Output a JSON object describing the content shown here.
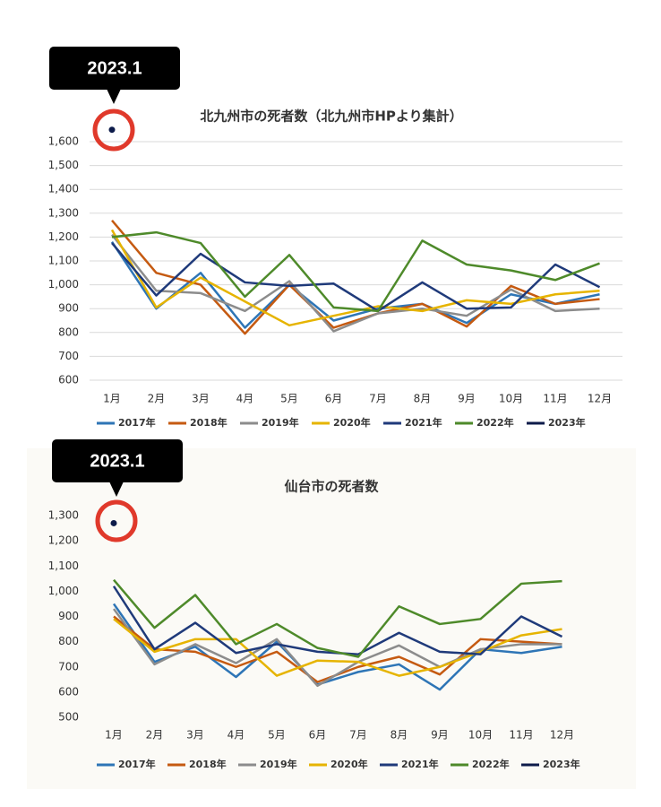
{
  "chart_data": [
    {
      "type": "line",
      "title": "北九州市の死者数（北九州市HPより集計）",
      "annotation": "2023.1",
      "categories": [
        "1月",
        "2月",
        "3月",
        "4月",
        "5月",
        "6月",
        "7月",
        "8月",
        "9月",
        "10月",
        "11月",
        "12月"
      ],
      "ylim": [
        600,
        1600
      ],
      "yticks": [
        600,
        700,
        800,
        900,
        {
          "value": 1000,
          "label": "1,000"
        },
        {
          "value": 1100,
          "label": "1,100"
        },
        {
          "value": 1200,
          "label": "1,200"
        },
        {
          "value": 1300,
          "label": "1,300"
        },
        {
          "value": 1400,
          "label": "1,400"
        },
        {
          "value": 1500,
          "label": "1,500"
        },
        {
          "value": 1600,
          "label": "1,600"
        }
      ],
      "grid": true,
      "series": [
        {
          "name": "2017年",
          "color": "#2e75b6",
          "values": [
            1180,
            900,
            1050,
            820,
            1000,
            850,
            900,
            920,
            840,
            960,
            920,
            960
          ]
        },
        {
          "name": "2018年",
          "color": "#c55a11",
          "values": [
            1270,
            1050,
            1000,
            795,
            1000,
            820,
            880,
            920,
            825,
            995,
            920,
            940
          ]
        },
        {
          "name": "2019年",
          "color": "#8c8c8c",
          "values": [
            1210,
            975,
            965,
            890,
            1015,
            805,
            880,
            900,
            870,
            980,
            890,
            900
          ]
        },
        {
          "name": "2020年",
          "color": "#e6b400",
          "values": [
            1230,
            905,
            1030,
            930,
            830,
            870,
            910,
            890,
            935,
            920,
            960,
            975
          ]
        },
        {
          "name": "2021年",
          "color": "#1f3a7a",
          "values": [
            1175,
            955,
            1130,
            1010,
            995,
            1005,
            890,
            1010,
            900,
            905,
            1085,
            990
          ]
        },
        {
          "name": "2022年",
          "color": "#4e8a2a",
          "values": [
            1200,
            1220,
            1175,
            950,
            1125,
            905,
            890,
            1185,
            1085,
            1060,
            1020,
            1090
          ]
        },
        {
          "name": "2023年",
          "color": "#0d1b4a",
          "values": [
            1650,
            null,
            null,
            null,
            null,
            null,
            null,
            null,
            null,
            null,
            null,
            null
          ]
        }
      ]
    },
    {
      "type": "line",
      "title": "仙台市の死者数",
      "annotation": "2023.1",
      "categories": [
        "1月",
        "2月",
        "3月",
        "4月",
        "5月",
        "6月",
        "7月",
        "8月",
        "9月",
        "10月",
        "11月",
        "12月"
      ],
      "ylim": [
        500,
        1300
      ],
      "yticks": [
        500,
        600,
        700,
        800,
        900,
        {
          "value": 1000,
          "label": "1,000"
        },
        {
          "value": 1100,
          "label": "1,100"
        },
        {
          "value": 1200,
          "label": "1,200"
        },
        {
          "value": 1300,
          "label": "1,300"
        }
      ],
      "grid": false,
      "series": [
        {
          "name": "2017年",
          "color": "#2e75b6",
          "values": [
            950,
            720,
            780,
            660,
            800,
            630,
            680,
            710,
            610,
            770,
            755,
            780
          ]
        },
        {
          "name": "2018年",
          "color": "#c55a11",
          "values": [
            900,
            770,
            760,
            700,
            760,
            640,
            700,
            740,
            670,
            810,
            800,
            790
          ]
        },
        {
          "name": "2019年",
          "color": "#8c8c8c",
          "values": [
            930,
            710,
            790,
            715,
            810,
            625,
            720,
            785,
            700,
            770,
            790,
            790
          ]
        },
        {
          "name": "2020年",
          "color": "#e6b400",
          "values": [
            890,
            760,
            810,
            810,
            665,
            725,
            720,
            665,
            700,
            760,
            825,
            850
          ]
        },
        {
          "name": "2021年",
          "color": "#1f3a7a",
          "values": [
            1020,
            770,
            875,
            755,
            790,
            760,
            750,
            835,
            760,
            750,
            900,
            820
          ]
        },
        {
          "name": "2022年",
          "color": "#4e8a2a",
          "values": [
            1045,
            855,
            985,
            790,
            870,
            775,
            740,
            940,
            870,
            890,
            1030,
            1040
          ]
        },
        {
          "name": "2023年",
          "color": "#0d1b4a",
          "values": [
            1270,
            null,
            null,
            null,
            null,
            null,
            null,
            null,
            null,
            null,
            null,
            null
          ]
        }
      ]
    }
  ]
}
